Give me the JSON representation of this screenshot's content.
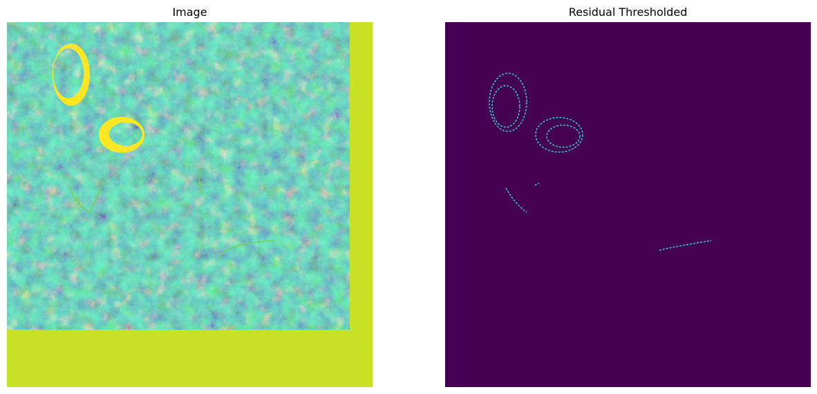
{
  "figure": {
    "panels": [
      {
        "title": "Image"
      },
      {
        "title": "Residual Thresholded"
      }
    ],
    "colormap": "viridis",
    "colors": {
      "viridis_dark": "#440154",
      "viridis_blue": "#31688e",
      "viridis_teal": "#21918c",
      "viridis_green": "#35b779",
      "viridis_yellow": "#fde725",
      "border_yellow": "#c7e020",
      "outline_cyan": "#3ec4c3"
    }
  }
}
